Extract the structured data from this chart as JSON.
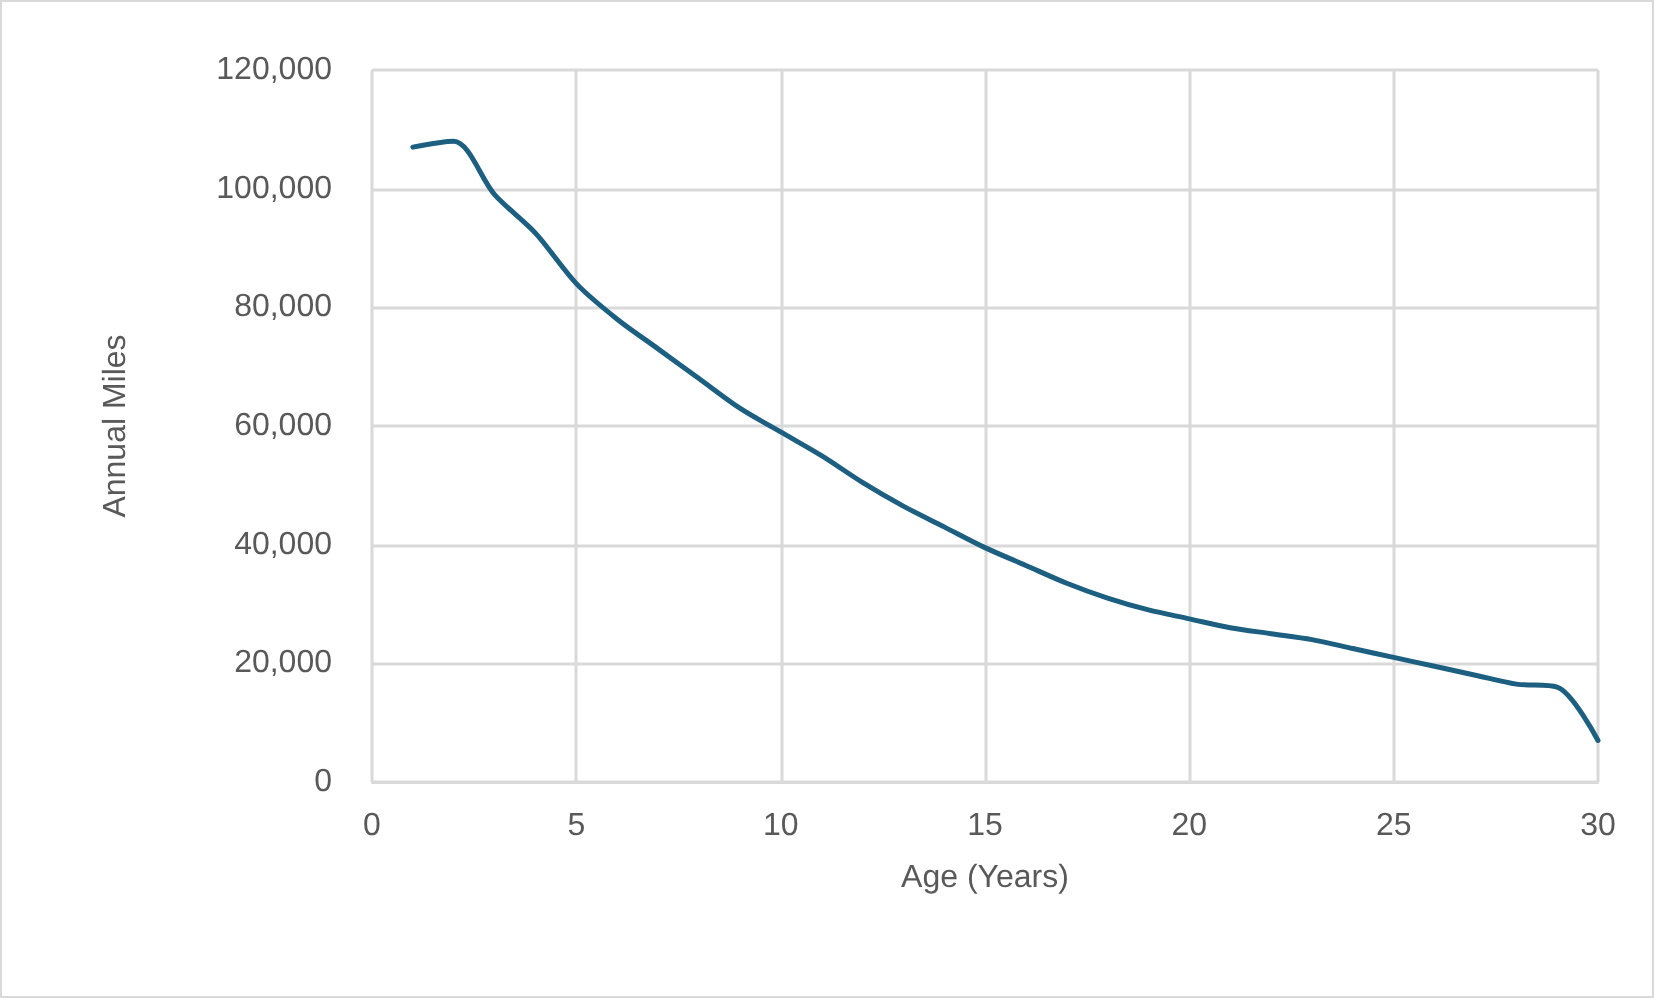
{
  "chart_data": {
    "type": "line",
    "xlabel": "Age (Years)",
    "ylabel": "Annual Miles",
    "x": [
      1,
      2,
      3,
      4,
      5,
      6,
      7,
      8,
      9,
      10,
      11,
      12,
      13,
      14,
      15,
      16,
      17,
      18,
      19,
      20,
      21,
      22,
      23,
      24,
      25,
      26,
      27,
      28,
      29,
      30
    ],
    "series": [
      {
        "color": "#1c5f80",
        "values": [
          107000,
          108000,
          99000,
          92500,
          84000,
          78000,
          73000,
          68000,
          63000,
          59000,
          55000,
          50500,
          46500,
          43000,
          39500,
          36500,
          33500,
          31000,
          29000,
          27500,
          26000,
          25000,
          24000,
          22500,
          21000,
          19500,
          18000,
          16500,
          16000,
          7000
        ]
      }
    ],
    "xlim": [
      0,
      30
    ],
    "xticks": [
      0,
      5,
      10,
      15,
      20,
      25,
      30
    ],
    "ylim": [
      0,
      120000
    ],
    "yticks": [
      0,
      {
        "value": 20000,
        "label": "20,000"
      },
      {
        "value": 40000,
        "label": "40,000"
      },
      {
        "value": 60000,
        "label": "60,000"
      },
      {
        "value": 80000,
        "label": "80,000"
      },
      {
        "value": 100000,
        "label": "100,000"
      },
      {
        "value": 120000,
        "label": "120,000"
      }
    ],
    "grid": true,
    "marker": "none",
    "line_style": "solid"
  }
}
